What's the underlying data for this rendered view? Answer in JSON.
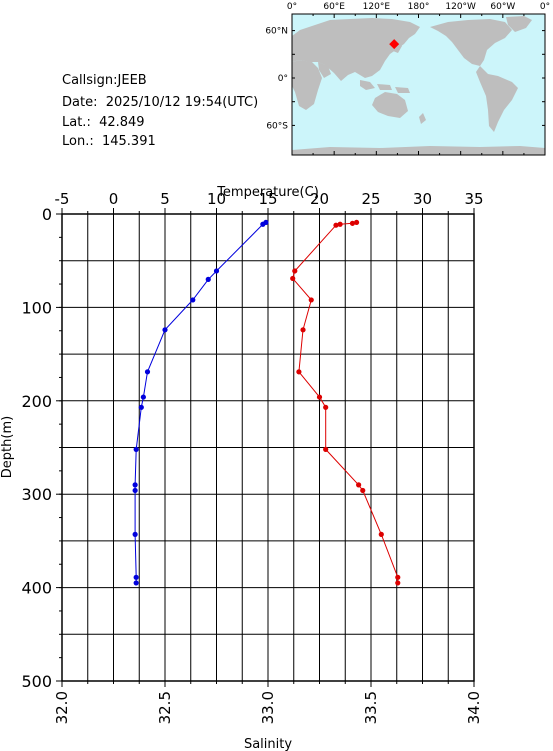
{
  "header": {
    "callsign": "Callsign:JEEB",
    "date": "Date:  2025/10/12 19:54(UTC)",
    "lat": "Lat.:  42.849",
    "lon": "Lon.:  145.391"
  },
  "map": {
    "top_labels": [
      "0°",
      "60°E",
      "120°E",
      "180°",
      "120°W",
      "60°W",
      "0°"
    ],
    "left_labels": [
      "60°N",
      "0°",
      "60°S"
    ],
    "ocean_color": "#ccf5fa",
    "land_color": "#bebebe",
    "marker_color": "#ff0000",
    "marker": {
      "lon": 145.391,
      "lat": 42.849
    }
  },
  "chart_data": {
    "type": "line",
    "ylabel": "Depth(m)",
    "ylim": [
      500,
      0
    ],
    "y_ticks": [
      "0",
      "100",
      "200",
      "300",
      "400",
      "500"
    ],
    "top_axis": {
      "label": "Temperature(C)",
      "range": [
        -5,
        35
      ],
      "ticks": [
        "-5",
        "0",
        "5",
        "10",
        "15",
        "20",
        "25",
        "30",
        "35"
      ]
    },
    "bottom_axis": {
      "label": "Salinity",
      "range": [
        32.0,
        34.0
      ],
      "ticks": [
        "32.0",
        "32.5",
        "33.0",
        "33.5",
        "34.0"
      ]
    },
    "grid": true,
    "series": [
      {
        "axis": "temperature",
        "color": "#0000dd",
        "points": [
          {
            "x": 14.8,
            "y": 9
          },
          {
            "x": 14.5,
            "y": 11
          },
          {
            "x": 10.0,
            "y": 61
          },
          {
            "x": 9.2,
            "y": 70
          },
          {
            "x": 7.7,
            "y": 92
          },
          {
            "x": 5.0,
            "y": 124
          },
          {
            "x": 3.3,
            "y": 169
          },
          {
            "x": 2.9,
            "y": 196
          },
          {
            "x": 2.7,
            "y": 207
          },
          {
            "x": 2.2,
            "y": 252
          },
          {
            "x": 2.1,
            "y": 290
          },
          {
            "x": 2.1,
            "y": 296
          },
          {
            "x": 2.1,
            "y": 343
          },
          {
            "x": 2.2,
            "y": 389
          },
          {
            "x": 2.2,
            "y": 395
          }
        ]
      },
      {
        "axis": "salinity",
        "color": "#dd0000",
        "points": [
          {
            "x": 33.43,
            "y": 9
          },
          {
            "x": 33.41,
            "y": 10
          },
          {
            "x": 33.35,
            "y": 11
          },
          {
            "x": 33.33,
            "y": 12
          },
          {
            "x": 33.13,
            "y": 61
          },
          {
            "x": 33.12,
            "y": 69
          },
          {
            "x": 33.21,
            "y": 92
          },
          {
            "x": 33.17,
            "y": 124
          },
          {
            "x": 33.15,
            "y": 169
          },
          {
            "x": 33.25,
            "y": 196
          },
          {
            "x": 33.28,
            "y": 207
          },
          {
            "x": 33.28,
            "y": 252
          },
          {
            "x": 33.44,
            "y": 290
          },
          {
            "x": 33.46,
            "y": 296
          },
          {
            "x": 33.55,
            "y": 343
          },
          {
            "x": 33.63,
            "y": 389
          },
          {
            "x": 33.63,
            "y": 395
          }
        ]
      }
    ]
  }
}
